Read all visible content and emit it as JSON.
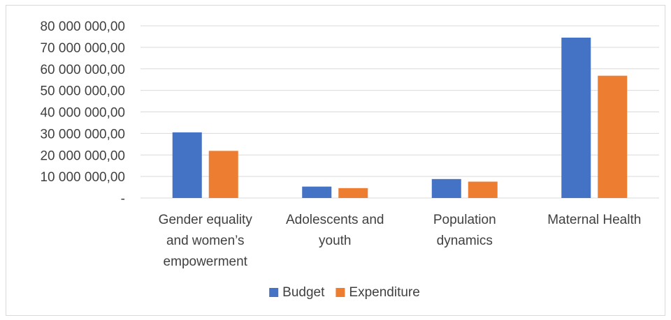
{
  "chart_data": {
    "type": "bar",
    "title": "",
    "xlabel": "",
    "ylabel": "",
    "categories": [
      [
        "Gender equality",
        "and women’s",
        "empowerment"
      ],
      [
        "Adolescents and",
        "youth"
      ],
      [
        "Population",
        "dynamics"
      ],
      [
        "Maternal Health"
      ]
    ],
    "series": [
      {
        "name": "Budget",
        "color": "#4472C4",
        "values": [
          30500000,
          5300000,
          8800000,
          74500000
        ]
      },
      {
        "name": "Expenditure",
        "color": "#ED7D31",
        "values": [
          21900000,
          4600000,
          7600000,
          56800000
        ]
      }
    ],
    "ylim": [
      0,
      80000000
    ],
    "yticks": [
      {
        "value": 0,
        "label": "-"
      },
      {
        "value": 10000000,
        "label": "10 000 000,00"
      },
      {
        "value": 20000000,
        "label": "20 000 000,00"
      },
      {
        "value": 30000000,
        "label": "30 000 000,00"
      },
      {
        "value": 40000000,
        "label": "40 000 000,00"
      },
      {
        "value": 50000000,
        "label": "50 000 000,00"
      },
      {
        "value": 60000000,
        "label": "60 000 000,00"
      },
      {
        "value": 70000000,
        "label": "70 000 000,00"
      },
      {
        "value": 80000000,
        "label": "80 000 000,00"
      }
    ],
    "grid": true,
    "gridColor": "#d9d9d9",
    "legend": "bottom"
  }
}
